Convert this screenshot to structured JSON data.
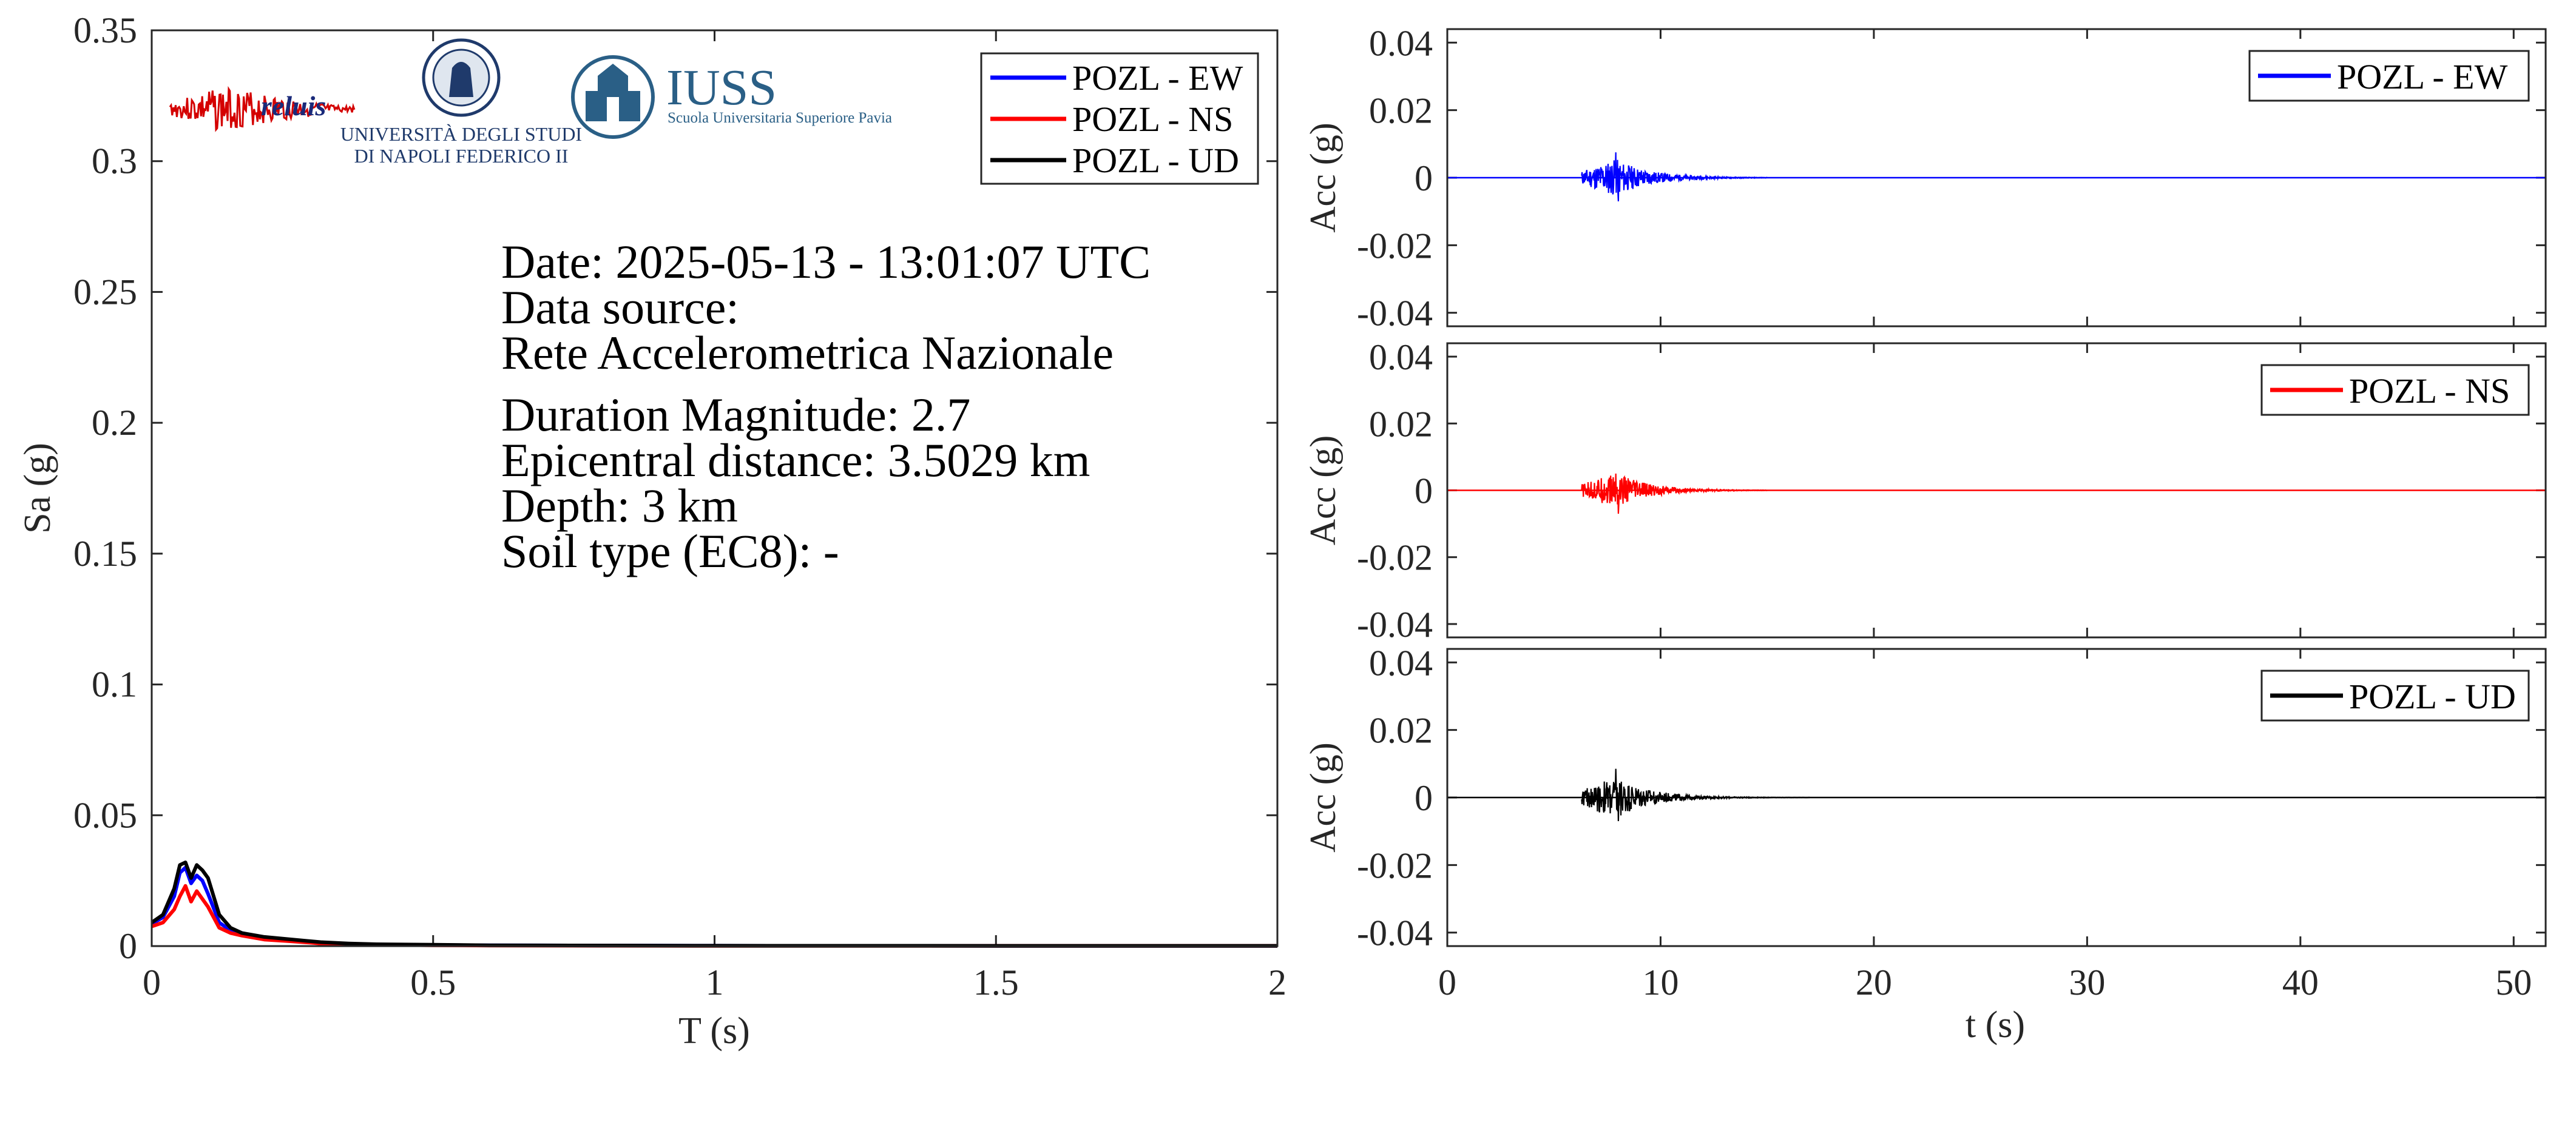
{
  "colors": {
    "EW": "#0000ff",
    "NS": "#ff0000",
    "UD": "#000000",
    "axis": "#262626",
    "reluis_signal": "#d40000",
    "reluis_text": "#1a2a7a",
    "unina": "#1f3a6b",
    "iuss": "#2a5f86"
  },
  "logos": {
    "reluis": "reluis",
    "unina_line1": "UNIVERSITÀ DEGLI STUDI",
    "unina_line2": "DI NAPOLI FEDERICO II",
    "iuss_title": "IUSS",
    "iuss_subtitle": "Scuola Universitaria Superiore Pavia"
  },
  "info": {
    "date": "Date: 2025-05-13 - 13:01:07 UTC",
    "source_label": "Data source:",
    "source": "Rete Accelerometrica Nazionale",
    "magnitude": "Duration Magnitude: 2.7",
    "distance": "Epicentral distance: 3.5029 km",
    "depth": "Depth: 3 km",
    "soil": "Soil type (EC8): -"
  },
  "chart_data": [
    {
      "type": "line",
      "xlabel": "T (s)",
      "ylabel": "Sa (g)",
      "xlim": [
        0,
        2
      ],
      "ylim": [
        0,
        0.35
      ],
      "xticks": [
        0,
        0.5,
        1,
        1.5,
        2
      ],
      "xtick_labels": [
        "0",
        "0.5",
        "1",
        "1.5",
        "2"
      ],
      "yticks": [
        0,
        0.05,
        0.1,
        0.15,
        0.2,
        0.25,
        0.3,
        0.35
      ],
      "ytick_labels": [
        "0",
        "0.05",
        "0.1",
        "0.15",
        "0.2",
        "0.25",
        "0.3",
        "0.35"
      ],
      "legend_position": "top-right",
      "x": [
        0,
        0.02,
        0.04,
        0.05,
        0.06,
        0.07,
        0.08,
        0.09,
        0.1,
        0.12,
        0.14,
        0.16,
        0.2,
        0.25,
        0.3,
        0.35,
        0.4,
        0.5,
        0.6,
        0.8,
        1.0,
        1.5,
        2.0
      ],
      "series": [
        {
          "name": "POZL - EW",
          "color": "EW",
          "values": [
            0.0085,
            0.011,
            0.019,
            0.028,
            0.03,
            0.024,
            0.027,
            0.025,
            0.02,
            0.009,
            0.006,
            0.005,
            0.003,
            0.002,
            0.0012,
            0.0008,
            0.0006,
            0.0004,
            0.0003,
            0.0002,
            0.00015,
            0.0001,
            0.0001
          ]
        },
        {
          "name": "POZL - NS",
          "color": "NS",
          "values": [
            0.0075,
            0.009,
            0.014,
            0.019,
            0.023,
            0.017,
            0.021,
            0.018,
            0.015,
            0.007,
            0.005,
            0.004,
            0.0025,
            0.0018,
            0.001,
            0.0007,
            0.0005,
            0.0003,
            0.0002,
            0.00015,
            0.0001,
            0.0001,
            0.0001
          ]
        },
        {
          "name": "POZL - UD",
          "color": "UD",
          "values": [
            0.009,
            0.012,
            0.022,
            0.031,
            0.032,
            0.026,
            0.031,
            0.029,
            0.026,
            0.012,
            0.007,
            0.005,
            0.0035,
            0.0025,
            0.0015,
            0.001,
            0.0007,
            0.0005,
            0.0003,
            0.0002,
            0.00015,
            0.0001,
            0.0001
          ]
        }
      ]
    },
    {
      "type": "line",
      "ylabel": "Acc (g)",
      "xlim": [
        0,
        51.5
      ],
      "ylim": [
        -0.044,
        0.044
      ],
      "yticks": [
        -0.04,
        -0.02,
        0,
        0.02,
        0.04
      ],
      "ytick_labels": [
        "-0.04",
        "-0.02",
        "0",
        "0.02",
        "0.04"
      ],
      "xticks": [
        0,
        10,
        20,
        30,
        40,
        50
      ],
      "legend_position": "top-right",
      "series": [
        {
          "name": "POZL - EW",
          "color": "EW",
          "onset": 6.3,
          "peak_time": 7.9,
          "peak": 0.0075,
          "min": -0.007,
          "fade_end": 15
        }
      ]
    },
    {
      "type": "line",
      "ylabel": "Acc (g)",
      "xlim": [
        0,
        51.5
      ],
      "ylim": [
        -0.044,
        0.044
      ],
      "yticks": [
        -0.04,
        -0.02,
        0,
        0.02,
        0.04
      ],
      "ytick_labels": [
        "-0.04",
        "-0.02",
        "0",
        "0.02",
        "0.04"
      ],
      "xticks": [
        0,
        10,
        20,
        30,
        40,
        50
      ],
      "legend_position": "top-right",
      "series": [
        {
          "name": "POZL - NS",
          "color": "NS",
          "onset": 6.3,
          "peak_time": 7.9,
          "peak": 0.005,
          "min": -0.007,
          "fade_end": 15
        }
      ]
    },
    {
      "type": "line",
      "xlabel": "t (s)",
      "ylabel": "Acc (g)",
      "xlim": [
        0,
        51.5
      ],
      "ylim": [
        -0.044,
        0.044
      ],
      "yticks": [
        -0.04,
        -0.02,
        0,
        0.02,
        0.04
      ],
      "ytick_labels": [
        "-0.04",
        "-0.02",
        "0",
        "0.02",
        "0.04"
      ],
      "xticks": [
        0,
        10,
        20,
        30,
        40,
        50
      ],
      "xtick_labels": [
        "0",
        "10",
        "20",
        "30",
        "40",
        "50"
      ],
      "legend_position": "top-right",
      "series": [
        {
          "name": "POZL - UD",
          "color": "UD",
          "onset": 6.3,
          "peak_time": 7.9,
          "peak": 0.0085,
          "min": -0.007,
          "fade_end": 17
        }
      ]
    }
  ]
}
